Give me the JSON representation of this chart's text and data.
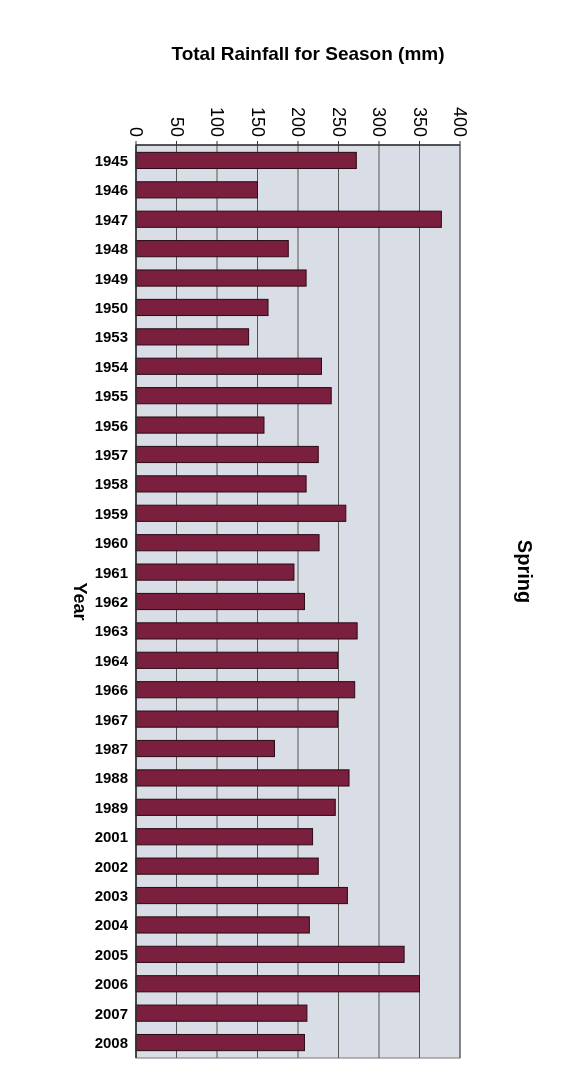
{
  "chart_data": {
    "type": "bar",
    "orientation": "horizontal",
    "title": "Spring",
    "xlabel": "Total Rainfall for Season (mm)",
    "ylabel": "Year",
    "categories": [
      "1945",
      "1946",
      "1947",
      "1948",
      "1949",
      "1950",
      "1953",
      "1954",
      "1955",
      "1956",
      "1957",
      "1958",
      "1959",
      "1960",
      "1961",
      "1962",
      "1963",
      "1964",
      "1966",
      "1967",
      "1987",
      "1988",
      "1989",
      "2001",
      "2002",
      "2003",
      "2004",
      "2005",
      "2006",
      "2007",
      "2008"
    ],
    "values": [
      272,
      150,
      377,
      188,
      210,
      163,
      139,
      229,
      241,
      158,
      225,
      210,
      259,
      226,
      195,
      208,
      273,
      249,
      270,
      249,
      171,
      263,
      246,
      218,
      225,
      261,
      214,
      331,
      350,
      211,
      208
    ],
    "color": "#7a1f3d",
    "xlim": [
      0,
      400
    ],
    "xticks": [
      0,
      50,
      100,
      150,
      200,
      250,
      300,
      350,
      400
    ],
    "grid": "x"
  }
}
